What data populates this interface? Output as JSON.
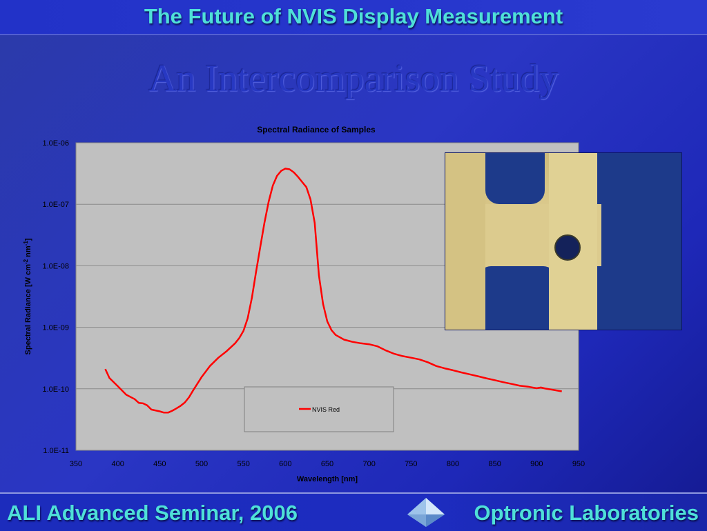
{
  "slide": {
    "title": "The Future of NVIS Display Measurement",
    "subtitle": "An Intercomparison Study",
    "footer_left": "ALI Advanced Seminar, 2006",
    "footer_right": "Optronic Laboratories"
  },
  "colors": {
    "title": "#4fe0d8",
    "background": "#2a36c4",
    "plot_area": "#c0c0c0",
    "series": "#ff0000"
  },
  "chart_data": {
    "type": "line",
    "title": "Spectral Radiance of Samples",
    "xlabel": "Wavelength [nm]",
    "ylabel_main": "Spectral Radiance [W cm",
    "ylabel_sup1": "-2",
    "ylabel_mid": " nm",
    "ylabel_sup2": "-1",
    "ylabel_end": "]",
    "xlim": [
      350,
      950
    ],
    "ylim": [
      1e-11,
      1e-06
    ],
    "yscale": "log",
    "xticks": [
      350,
      400,
      450,
      500,
      550,
      600,
      650,
      700,
      750,
      800,
      850,
      900,
      950
    ],
    "xtick_labels": [
      "350",
      "400",
      "450",
      "500",
      "550",
      "600",
      "650",
      "700",
      "750",
      "800",
      "850",
      "900",
      "950"
    ],
    "yticks": [
      1e-11,
      1e-10,
      1e-09,
      1e-08,
      1e-07,
      1e-06
    ],
    "ytick_labels": [
      "1.0E-11",
      "1.0E-10",
      "1.0E-09",
      "1.0E-08",
      "1.0E-07",
      "1.0E-06"
    ],
    "grid": "horizontal",
    "legend": "bottom-center",
    "series": [
      {
        "name": "NVIS Red",
        "color": "#ff0000",
        "x": [
          385,
          390,
          400,
          410,
          420,
          425,
          430,
          435,
          440,
          450,
          455,
          460,
          465,
          470,
          475,
          480,
          485,
          490,
          500,
          510,
          520,
          530,
          540,
          545,
          550,
          555,
          560,
          565,
          570,
          575,
          580,
          585,
          590,
          595,
          600,
          605,
          610,
          615,
          620,
          625,
          630,
          635,
          640,
          645,
          650,
          655,
          660,
          670,
          680,
          690,
          700,
          710,
          720,
          730,
          740,
          750,
          760,
          770,
          780,
          790,
          800,
          810,
          820,
          830,
          840,
          850,
          860,
          870,
          880,
          890,
          900,
          905,
          910,
          920,
          930
        ],
        "y": [
          2.1e-10,
          1.5e-10,
          1.1e-10,
          8e-11,
          6.8e-11,
          5.9e-11,
          5.8e-11,
          5.4e-11,
          4.6e-11,
          4.3e-11,
          4.1e-11,
          4.1e-11,
          4.4e-11,
          4.8e-11,
          5.3e-11,
          6e-11,
          7.3e-11,
          9.5e-11,
          1.55e-10,
          2.35e-10,
          3.2e-10,
          4.1e-10,
          5.5e-10,
          6.7e-10,
          8.8e-10,
          1.4e-09,
          3e-09,
          8e-09,
          2e-08,
          5e-08,
          1.1e-07,
          2e-07,
          2.9e-07,
          3.5e-07,
          3.8e-07,
          3.7e-07,
          3.3e-07,
          2.8e-07,
          2.3e-07,
          1.9e-07,
          1.2e-07,
          5e-08,
          7e-09,
          2.4e-09,
          1.25e-09,
          9e-10,
          7.5e-10,
          6.3e-10,
          5.8e-10,
          5.5e-10,
          5.3e-10,
          4.9e-10,
          4.2e-10,
          3.7e-10,
          3.4e-10,
          3.2e-10,
          3e-10,
          2.7e-10,
          2.35e-10,
          2.15e-10,
          2e-10,
          1.85e-10,
          1.72e-10,
          1.6e-10,
          1.48e-10,
          1.38e-10,
          1.28e-10,
          1.2e-10,
          1.12e-10,
          1.08e-10,
          1.02e-10,
          1.05e-10,
          1.01e-10,
          9.6e-11,
          9.1e-11
        ]
      }
    ]
  }
}
